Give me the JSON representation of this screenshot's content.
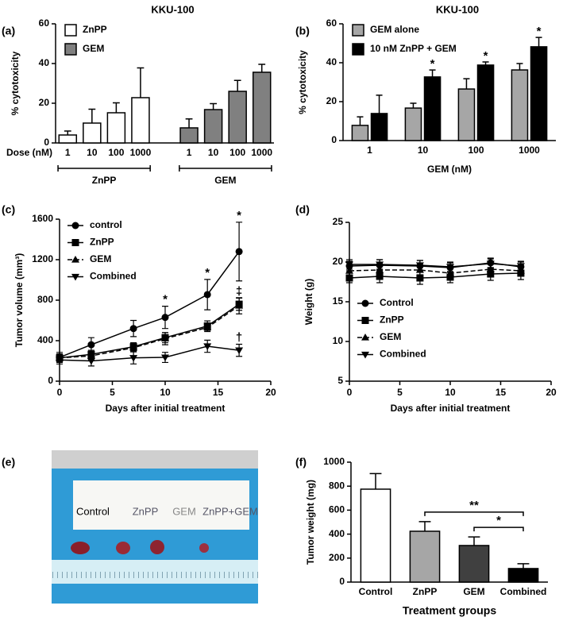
{
  "chart_data": [
    {
      "type": "bar",
      "panel": "(a)",
      "title": "KKU-100",
      "ylabel": "% cytotoxicity",
      "xlabel": "Dose (nM)",
      "categories": [
        "1",
        "10",
        "100",
        "1000",
        "1",
        "10",
        "100",
        "1000"
      ],
      "group_labels": [
        "ZnPP",
        "GEM"
      ],
      "series": [
        {
          "name": "ZnPP",
          "color": "#ffffff",
          "values": [
            4,
            10,
            15.2,
            22.8,
            null,
            null,
            null,
            null
          ],
          "errors": [
            2,
            7,
            5,
            15,
            null,
            null,
            null,
            null
          ]
        },
        {
          "name": "GEM",
          "color": "#808080",
          "values": [
            null,
            null,
            null,
            null,
            7.6,
            16.8,
            26,
            35.6
          ],
          "errors": [
            null,
            null,
            null,
            null,
            4.5,
            3,
            5.5,
            4
          ]
        }
      ],
      "ylim": [
        0,
        60
      ],
      "yticks": [
        0,
        20,
        40,
        60
      ],
      "legend": "upper left"
    },
    {
      "type": "bar",
      "panel": "(b)",
      "title": "KKU-100",
      "ylabel": "% cytotoxicity",
      "xlabel": "GEM (nM)",
      "categories": [
        "1",
        "10",
        "100",
        "1000"
      ],
      "series": [
        {
          "name": "GEM alone",
          "color": "#a6a6a6",
          "values": [
            7.8,
            16.7,
            26.5,
            36.3
          ],
          "errors": [
            4.4,
            2.5,
            5.3,
            3.3
          ]
        },
        {
          "name": "10 nM ZnPP + GEM",
          "color": "#000000",
          "values": [
            13.9,
            32.7,
            38.8,
            48.2
          ],
          "errors": [
            9.4,
            3.6,
            1.6,
            4.8
          ],
          "annotations": [
            null,
            "*",
            "*",
            "*"
          ]
        }
      ],
      "ylim": [
        0,
        60
      ],
      "yticks": [
        0,
        20,
        40,
        60
      ],
      "legend": "upper left"
    },
    {
      "type": "line",
      "panel": "(c)",
      "ylabel": "Tumor volume (mm³)",
      "xlabel": "Days after initial treatment",
      "x": [
        0,
        3,
        7,
        10,
        14,
        17
      ],
      "series": [
        {
          "name": "control",
          "color": "#000000",
          "marker": "circle",
          "linestyle": "solid",
          "values": [
            235,
            360,
            520,
            630,
            855,
            1280
          ],
          "errors": [
            50,
            70,
            80,
            110,
            150,
            290
          ],
          "annotations": [
            null,
            null,
            null,
            "*",
            "*",
            "*"
          ]
        },
        {
          "name": "ZnPP",
          "color": "#000000",
          "marker": "square",
          "linestyle": "solid",
          "values": [
            230,
            265,
            340,
            430,
            545,
            760
          ],
          "errors": [
            40,
            40,
            40,
            50,
            50,
            60
          ],
          "annotations": [
            null,
            null,
            null,
            null,
            null,
            "‡"
          ]
        },
        {
          "name": "GEM",
          "color": "#000000",
          "marker": "triangle",
          "linestyle": "dashed",
          "values": [
            230,
            250,
            330,
            420,
            530,
            745
          ],
          "errors": [
            40,
            40,
            40,
            60,
            40,
            80
          ]
        },
        {
          "name": "Combined",
          "color": "#000000",
          "marker": "triangle-down",
          "linestyle": "solid",
          "values": [
            210,
            200,
            230,
            235,
            345,
            305
          ],
          "errors": [
            40,
            50,
            60,
            50,
            60,
            60
          ],
          "annotations": [
            null,
            null,
            null,
            null,
            null,
            "†"
          ]
        }
      ],
      "xlim": [
        0,
        20
      ],
      "xticks": [
        0,
        5,
        10,
        15,
        20
      ],
      "ylim": [
        0,
        1600
      ],
      "yticks": [
        0,
        400,
        800,
        1200,
        1600
      ],
      "legend": "upper left"
    },
    {
      "type": "line",
      "panel": "(d)",
      "ylabel": "Weight (g)",
      "xlabel": "Days after initial treatment",
      "x": [
        0,
        3,
        7,
        10,
        14,
        17
      ],
      "series": [
        {
          "name": "Control",
          "color": "#000000",
          "marker": "circle",
          "linestyle": "solid",
          "values": [
            19.5,
            19.6,
            19.5,
            19.3,
            19.9,
            19.4
          ],
          "errors": [
            0.6,
            0.7,
            0.7,
            0.6,
            0.6,
            0.6
          ]
        },
        {
          "name": "ZnPP",
          "color": "#000000",
          "marker": "square",
          "linestyle": "solid",
          "values": [
            18,
            18.2,
            18,
            18.1,
            18.5,
            18.6
          ],
          "errors": [
            0.6,
            0.8,
            0.8,
            0.7,
            0.8,
            0.8
          ]
        },
        {
          "name": "GEM",
          "color": "#000000",
          "marker": "triangle",
          "linestyle": "dashed",
          "values": [
            18.9,
            19,
            19,
            18.6,
            19.1,
            18.9
          ],
          "errors": [
            0.6,
            0.6,
            0.6,
            0.6,
            0.6,
            0.6
          ]
        },
        {
          "name": "Combined",
          "color": "#000000",
          "marker": "triangle-down",
          "linestyle": "solid",
          "values": [
            19.7,
            19.7,
            19.6,
            19.4,
            19.8,
            19.5
          ],
          "errors": [
            0.6,
            0.6,
            0.6,
            0.6,
            0.6,
            0.6
          ]
        }
      ],
      "xlim": [
        0,
        20
      ],
      "xticks": [
        0,
        5,
        10,
        15,
        20
      ],
      "ylim": [
        5,
        25
      ],
      "yticks": [
        5,
        10,
        15,
        20,
        25
      ],
      "legend": "lower left"
    },
    {
      "type": "bar",
      "panel": "(f)",
      "ylabel": "Tumor weight (mg)",
      "xlabel": "Treatment groups",
      "categories": [
        "Control",
        "ZnPP",
        "GEM",
        "Combined"
      ],
      "values": [
        775,
        424,
        305,
        113
      ],
      "errors": [
        130,
        80,
        72,
        40
      ],
      "colors": [
        "#ffffff",
        "#a6a6a6",
        "#404040",
        "#000000"
      ],
      "significance": [
        {
          "from": 1,
          "to": 3,
          "label": "**"
        },
        {
          "from": 2,
          "to": 3,
          "label": "*"
        }
      ],
      "ylim": [
        0,
        1000
      ],
      "yticks": [
        0,
        200,
        400,
        600,
        800,
        1000
      ]
    }
  ],
  "photo": {
    "panel": "(e)",
    "labels": [
      "Control",
      "ZnPP",
      "GEM",
      "ZnPP+GEM"
    ]
  }
}
